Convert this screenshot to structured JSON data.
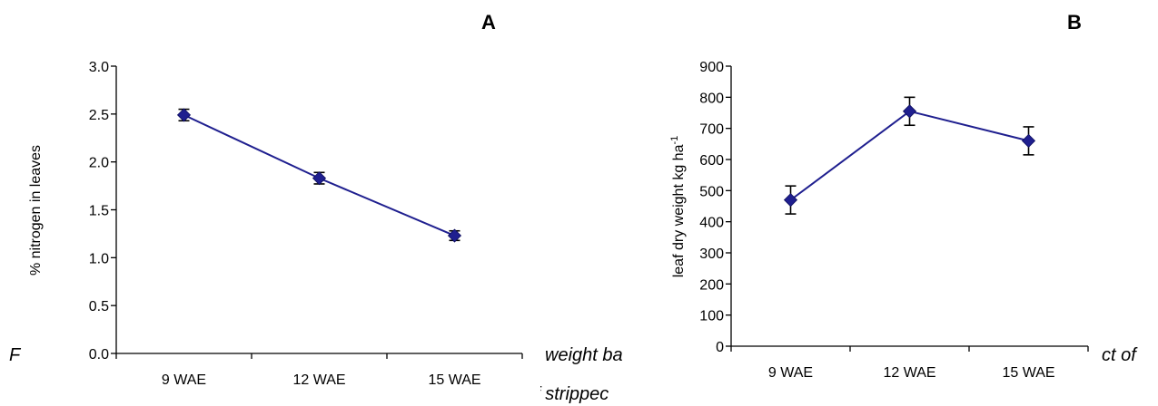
{
  "caption_fragments": {
    "left": "F",
    "mid_top": "weight ba",
    "mid_bottom": "of strippec",
    "right": "ct of"
  },
  "chart_data": [
    {
      "type": "line",
      "panel_label": "A",
      "categories": [
        "9 WAE",
        "12 WAE",
        "15 WAE"
      ],
      "values": [
        2.49,
        1.83,
        1.23
      ],
      "errors": [
        0.06,
        0.06,
        0.05
      ],
      "ylabel": "% nitrogen in leaves",
      "ylim": [
        0,
        3.0
      ],
      "yticks": [
        0.0,
        0.5,
        1.0,
        1.5,
        2.0,
        2.5,
        3.0
      ],
      "ytick_labels": [
        "0.0",
        "0.5",
        "1.0",
        "1.5",
        "2.0",
        "2.5",
        "3.0"
      ],
      "color": "#1f1f8f",
      "grid": false
    },
    {
      "type": "line",
      "panel_label": "B",
      "categories": [
        "9 WAE",
        "12 WAE",
        "15 WAE"
      ],
      "values": [
        470,
        755,
        660
      ],
      "errors": [
        45,
        45,
        45
      ],
      "ylabel": "leaf dry weight kg ha",
      "ylabel_sup": "-1",
      "ylim": [
        0,
        900
      ],
      "yticks": [
        0,
        100,
        200,
        300,
        400,
        500,
        600,
        700,
        800,
        900
      ],
      "ytick_labels": [
        "0",
        "100",
        "200",
        "300",
        "400",
        "500",
        "600",
        "700",
        "800",
        "900"
      ],
      "color": "#1f1f8f",
      "grid": false
    }
  ]
}
